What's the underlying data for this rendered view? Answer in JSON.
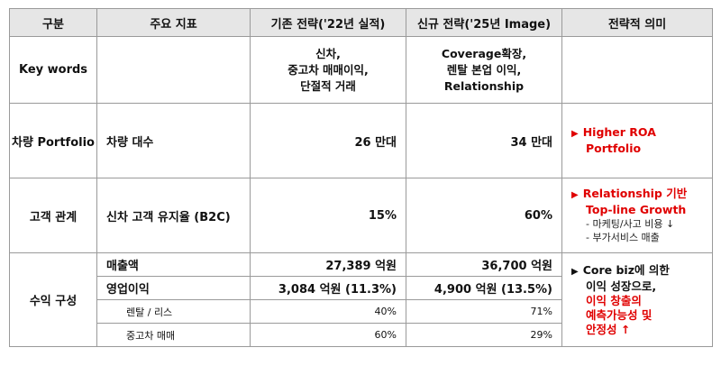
{
  "header": {
    "col1": "구분",
    "col2": "주요 지표",
    "col3": "기존 전략('22년 실적)",
    "col4": "신규 전략('25년 Image)",
    "col5": "전략적 의미"
  },
  "keywords": {
    "label": "Key words",
    "existing": [
      "신차,",
      "중고차 매매이익,",
      "단절적 거래"
    ],
    "new": [
      "Coverage확장,",
      "렌탈 본업 이익,",
      "Relationship"
    ]
  },
  "portfolio": {
    "label": "차량 Portfolio",
    "metric": "차량 대수",
    "existing": "26 만대",
    "new": "34 만대",
    "meaning": [
      "Higher ROA",
      "Portfolio"
    ]
  },
  "customer": {
    "label": "고객 관계",
    "metric": "신차 고객 유지율 (B2C)",
    "existing": "15%",
    "new": "60%",
    "meaning": [
      "Relationship 기반",
      "Top-line Growth"
    ],
    "notes": [
      "- 마케팅/사고 비용 ↓",
      "- 부가서비스 매출"
    ]
  },
  "profit": {
    "label": "수익 구성",
    "rows": [
      {
        "metric": "매출액",
        "existing": "27,389 억원",
        "new": "36,700 억원"
      },
      {
        "metric": "영업이익",
        "existing": "3,084 억원 (11.3%)",
        "new": "4,900 억원 (13.5%)"
      },
      {
        "metric": "렌탈 / 리스",
        "existing": "40%",
        "new": "71%"
      },
      {
        "metric": "중고차 매매",
        "existing": "60%",
        "new": "29%"
      }
    ],
    "meaning_black": [
      "Core biz에 의한",
      "이익 성장으로,"
    ],
    "meaning_red": [
      "이익 창출의",
      "예측가능성 및",
      "안정성 ↑"
    ]
  },
  "colors": {
    "accent_red": "#e00000",
    "header_bg": "#e6e6e6",
    "border": "#9a9a9a"
  },
  "icons": {
    "arrow": "red-triangle-right-icon",
    "bullet": "black-triangle-right-icon"
  }
}
